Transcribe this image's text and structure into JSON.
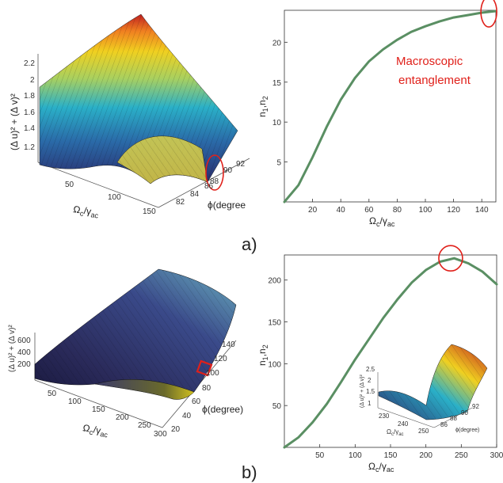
{
  "panel_labels": [
    "a)",
    "b)"
  ],
  "annotation": {
    "line1": "Macroscopic",
    "line2": "entanglement",
    "color": "#e0201a"
  },
  "colors": {
    "curve": "#5a8f63",
    "highlight": "#e0201a",
    "surface_low": "#2a2a6a",
    "surface_high": "#c02020"
  },
  "chart_data": [
    {
      "id": "a-surface",
      "type": "surface3d",
      "zlabel": "(Δ u)² + (Δ v)²",
      "xlabel": "Ω_c/γ_ac",
      "ylabel": "ϕ(degree",
      "z_ticks": [
        "1.2",
        "1.4",
        "1.6",
        "1.8",
        "2",
        "2.2"
      ],
      "x_ticks": [
        "50",
        "100",
        "150"
      ],
      "y_ticks": [
        "82",
        "84",
        "86",
        "88",
        "90",
        "92"
      ]
    },
    {
      "id": "a-line",
      "type": "line",
      "xlabel": "Ω_c/γ_ac",
      "ylabel": "n₁,n₂",
      "xlim": [
        0,
        150
      ],
      "ylim": [
        0,
        24
      ],
      "x_ticks": [
        20,
        40,
        60,
        80,
        100,
        120,
        140
      ],
      "y_ticks": [
        5,
        10,
        15,
        20
      ],
      "series": [
        {
          "x": [
            0,
            10,
            20,
            30,
            40,
            50,
            60,
            70,
            80,
            90,
            100,
            110,
            120,
            130,
            140,
            150
          ],
          "y": [
            0,
            2.1,
            5.6,
            9.4,
            12.8,
            15.5,
            17.6,
            19.1,
            20.3,
            21.3,
            22.0,
            22.6,
            23.1,
            23.4,
            23.7,
            23.9
          ]
        }
      ],
      "highlight": {
        "x": 145,
        "y": 23.8
      }
    },
    {
      "id": "b-surface",
      "type": "surface3d",
      "zlabel": "(Δ u)² + (Δ v)²",
      "xlabel": "Ω_c/γ_ac",
      "ylabel": "ϕ(degree)",
      "z_ticks": [
        "200",
        "400",
        "600"
      ],
      "x_ticks": [
        "50",
        "100",
        "150",
        "200",
        "250",
        "300"
      ],
      "y_ticks": [
        "20",
        "40",
        "60",
        "80",
        "100",
        "120",
        "140"
      ]
    },
    {
      "id": "b-line",
      "type": "line",
      "xlabel": "Ω_c/γ_ac",
      "ylabel": "n₁,n₂",
      "xlim": [
        0,
        300
      ],
      "ylim": [
        0,
        230
      ],
      "x_ticks": [
        50,
        100,
        150,
        200,
        250,
        300
      ],
      "y_ticks": [
        50,
        100,
        150,
        200
      ],
      "series": [
        {
          "x": [
            0,
            20,
            40,
            60,
            80,
            100,
            120,
            140,
            160,
            180,
            200,
            220,
            240,
            260,
            280,
            300
          ],
          "y": [
            0,
            12,
            30,
            52,
            78,
            105,
            130,
            155,
            177,
            197,
            212,
            222,
            226,
            220,
            210,
            195
          ]
        }
      ],
      "highlight": {
        "x": 235,
        "y": 226
      }
    },
    {
      "id": "b-inset",
      "type": "surface3d",
      "zlabel": "(Δ u)² + (Δ v)²",
      "xlabel": "Ω_c/γ_ac",
      "ylabel": "ϕ(degree)",
      "z_ticks": [
        "1",
        "1.5",
        "2",
        "2.5"
      ],
      "x_ticks": [
        "230",
        "240",
        "250"
      ],
      "y_ticks": [
        "86",
        "88",
        "90",
        "92"
      ]
    }
  ]
}
